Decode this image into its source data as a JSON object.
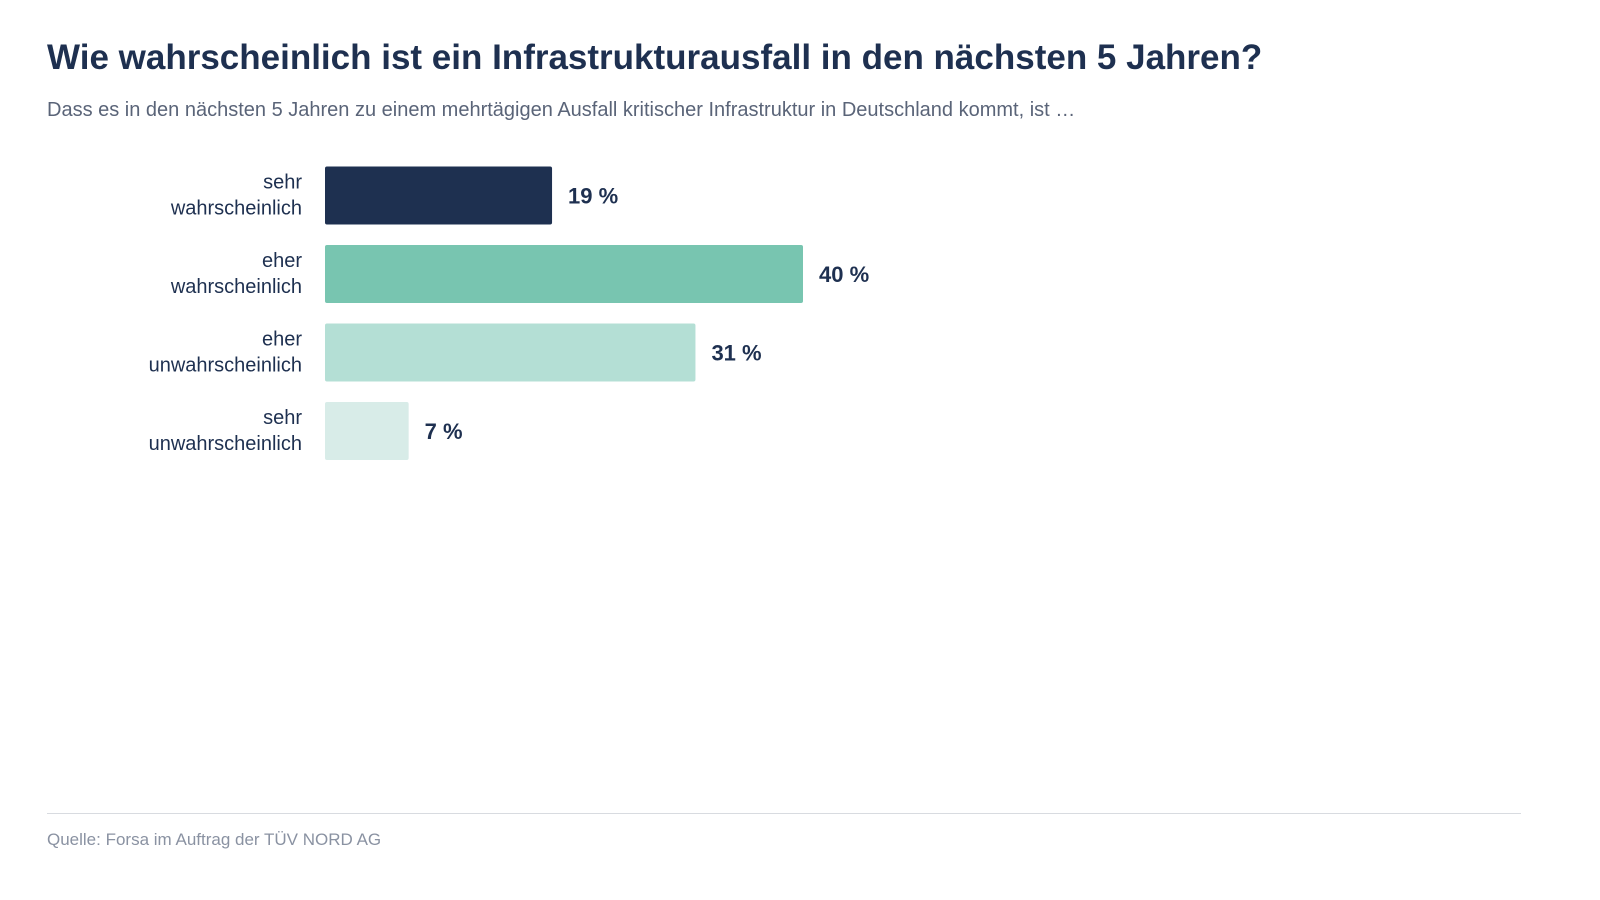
{
  "header": {
    "title": "Wie wahrscheinlich ist ein Infrastrukturausfall in den nächsten 5 Jahren?",
    "subtitle": "Dass es in den nächsten 5 Jahren zu einem mehrtägigen Ausfall kritischer Infrastruktur in Deutschland kommt, ist …"
  },
  "footer": {
    "source": "Quelle: Forsa im Auftrag der TÜV NORD AG"
  },
  "chart_data": {
    "type": "bar",
    "orientation": "horizontal",
    "title": "Wie wahrscheinlich ist ein Infrastrukturausfall in den nächsten 5 Jahren?",
    "xlabel": "",
    "ylabel": "",
    "unit": "%",
    "grid": false,
    "categories": [
      [
        "sehr",
        "wahrscheinlich"
      ],
      [
        "eher",
        "wahrscheinlich"
      ],
      [
        "eher",
        "unwahrscheinlich"
      ],
      [
        "sehr",
        "unwahrscheinlich"
      ]
    ],
    "values": [
      19,
      40,
      31,
      7
    ],
    "value_labels": [
      "19 %",
      "40 %",
      "31 %",
      "7 %"
    ],
    "colors": [
      "#1e3050",
      "#78c5b0",
      "#b4dfd5",
      "#d8ece8"
    ],
    "xlim": [
      0,
      100
    ]
  }
}
